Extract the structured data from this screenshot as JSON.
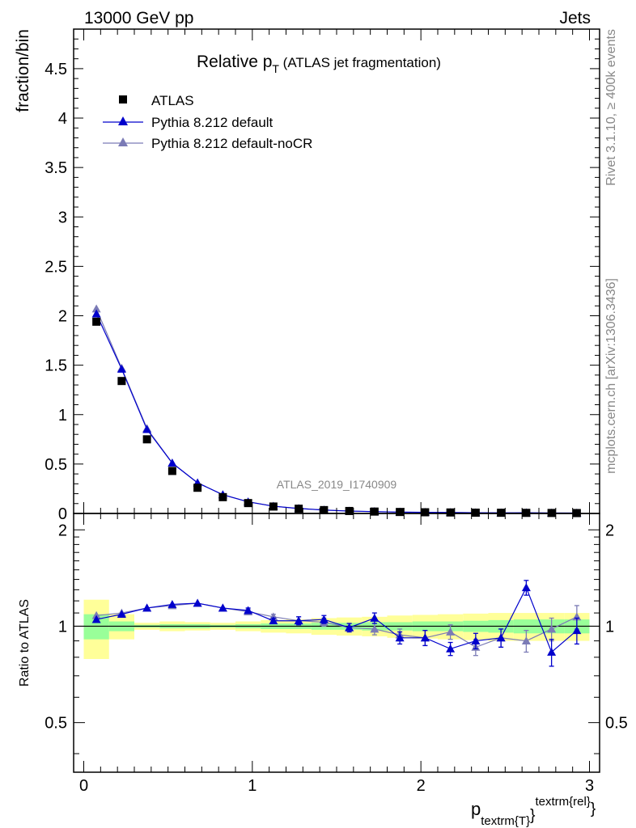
{
  "header": {
    "left": "13000 GeV pp",
    "right": "Jets"
  },
  "side": {
    "rivet": "Rivet 3.1.10, ≥ 400k events",
    "mcplots": "mcplots.cern.ch [arXiv:1306.3436]"
  },
  "title": {
    "main": "Relative p",
    "sub": "T",
    "rest": " (ATLAS jet fragmentation)"
  },
  "watermark": "ATLAS_2019_I1740909",
  "xlabel": {
    "p": "p",
    "sub": "textrm{T}",
    "brace": "}",
    "sup": "textrm{rel}",
    "end": "}"
  },
  "colors": {
    "default": "#0000cc",
    "nocr": "#7b7bb6",
    "data": "#000000",
    "band_inner": "#99ff99",
    "band_outer": "#ffff99"
  },
  "chart_data": [
    {
      "type": "scatter",
      "title": "Relative pT (ATLAS jet fragmentation)",
      "ylabel": "fraction/bin",
      "xlim": [
        -0.06,
        3.06
      ],
      "ylim": [
        0,
        4.9
      ],
      "yticks": [
        0,
        0.5,
        1,
        1.5,
        2,
        2.5,
        3,
        3.5,
        4,
        4.5
      ],
      "ytick_labels": [
        "0",
        "0.5",
        "1",
        "1.5",
        "2",
        "2.5",
        "3",
        "3.5",
        "4",
        "4.5"
      ],
      "bin_edges": [
        0,
        0.15,
        0.3,
        0.45,
        0.6,
        0.75,
        0.9,
        1.05,
        1.2,
        1.35,
        1.5,
        1.65,
        1.8,
        1.95,
        2.1,
        2.25,
        2.4,
        2.55,
        2.7,
        2.85,
        3.0
      ],
      "x": [
        0.075,
        0.225,
        0.375,
        0.525,
        0.675,
        0.825,
        0.975,
        1.125,
        1.275,
        1.425,
        1.575,
        1.725,
        1.875,
        2.025,
        2.175,
        2.325,
        2.475,
        2.625,
        2.775,
        2.925
      ],
      "legend": [
        "ATLAS",
        "Pythia 8.212 default",
        "Pythia 8.212 default-noCR"
      ],
      "series": [
        {
          "name": "ATLAS",
          "values": [
            1.94,
            1.34,
            0.75,
            0.43,
            0.26,
            0.165,
            0.105,
            0.07,
            0.048,
            0.034,
            0.025,
            0.019,
            0.015,
            0.012,
            0.01,
            0.008,
            0.007,
            0.006,
            0.005,
            0.004
          ]
        },
        {
          "name": "Pythia 8.212 default",
          "values": [
            2.02,
            1.46,
            0.85,
            0.51,
            0.31,
            0.19,
            0.118,
            0.073,
            0.05,
            0.035,
            0.024,
            0.019,
            0.014,
            0.011,
            0.009,
            0.007,
            0.006,
            0.007,
            0.004,
            0.004
          ]
        },
        {
          "name": "Pythia 8.212 default-noCR",
          "values": [
            2.07,
            1.47,
            0.86,
            0.51,
            0.31,
            0.19,
            0.117,
            0.074,
            0.05,
            0.035,
            0.024,
            0.018,
            0.014,
            0.011,
            0.01,
            0.007,
            0.006,
            0.005,
            0.005,
            0.004
          ]
        }
      ]
    },
    {
      "type": "scatter",
      "title": "",
      "ylabel": "Ratio to ATLAS",
      "xlabel": "p_textrm{T}^textrm{rel}",
      "xlim": [
        -0.06,
        3.06
      ],
      "ylim": [
        0.35,
        2.25
      ],
      "xticks": [
        0,
        1,
        2,
        3
      ],
      "xtick_labels": [
        "0",
        "1",
        "2",
        "3"
      ],
      "yticks": [
        0.5,
        1,
        2
      ],
      "ytick_labels": [
        "0.5",
        "1",
        "2"
      ],
      "band_inner": [
        0.09,
        0.035,
        0.01,
        0.015,
        0.015,
        0.01,
        0.015,
        0.02,
        0.02,
        0.025,
        0.025,
        0.03,
        0.03,
        0.035,
        0.035,
        0.04,
        0.045,
        0.05,
        0.05,
        0.05
      ],
      "band_outer": [
        0.21,
        0.09,
        0.025,
        0.035,
        0.03,
        0.025,
        0.035,
        0.045,
        0.05,
        0.06,
        0.065,
        0.07,
        0.08,
        0.085,
        0.09,
        0.095,
        0.1,
        0.1,
        0.1,
        0.1
      ],
      "series": [
        {
          "name": "Pythia 8.212 default",
          "values": [
            1.05,
            1.09,
            1.14,
            1.17,
            1.18,
            1.14,
            1.12,
            1.04,
            1.04,
            1.05,
            0.99,
            1.06,
            0.92,
            0.92,
            0.85,
            0.9,
            0.92,
            1.32,
            0.83,
            0.97
          ],
          "errors": [
            0.01,
            0.01,
            0.01,
            0.01,
            0.01,
            0.01,
            0.02,
            0.02,
            0.03,
            0.03,
            0.03,
            0.04,
            0.04,
            0.05,
            0.04,
            0.05,
            0.06,
            0.07,
            0.08,
            0.09
          ]
        },
        {
          "name": "Pythia 8.212 default-noCR",
          "values": [
            1.08,
            1.1,
            1.14,
            1.16,
            1.18,
            1.14,
            1.11,
            1.07,
            1.04,
            1.03,
            0.99,
            0.98,
            0.94,
            0.92,
            0.96,
            0.86,
            0.92,
            0.9,
            0.98,
            1.07
          ],
          "errors": [
            0.01,
            0.01,
            0.01,
            0.01,
            0.01,
            0.01,
            0.02,
            0.02,
            0.03,
            0.03,
            0.03,
            0.04,
            0.04,
            0.05,
            0.05,
            0.05,
            0.06,
            0.07,
            0.08,
            0.09
          ]
        }
      ]
    }
  ]
}
